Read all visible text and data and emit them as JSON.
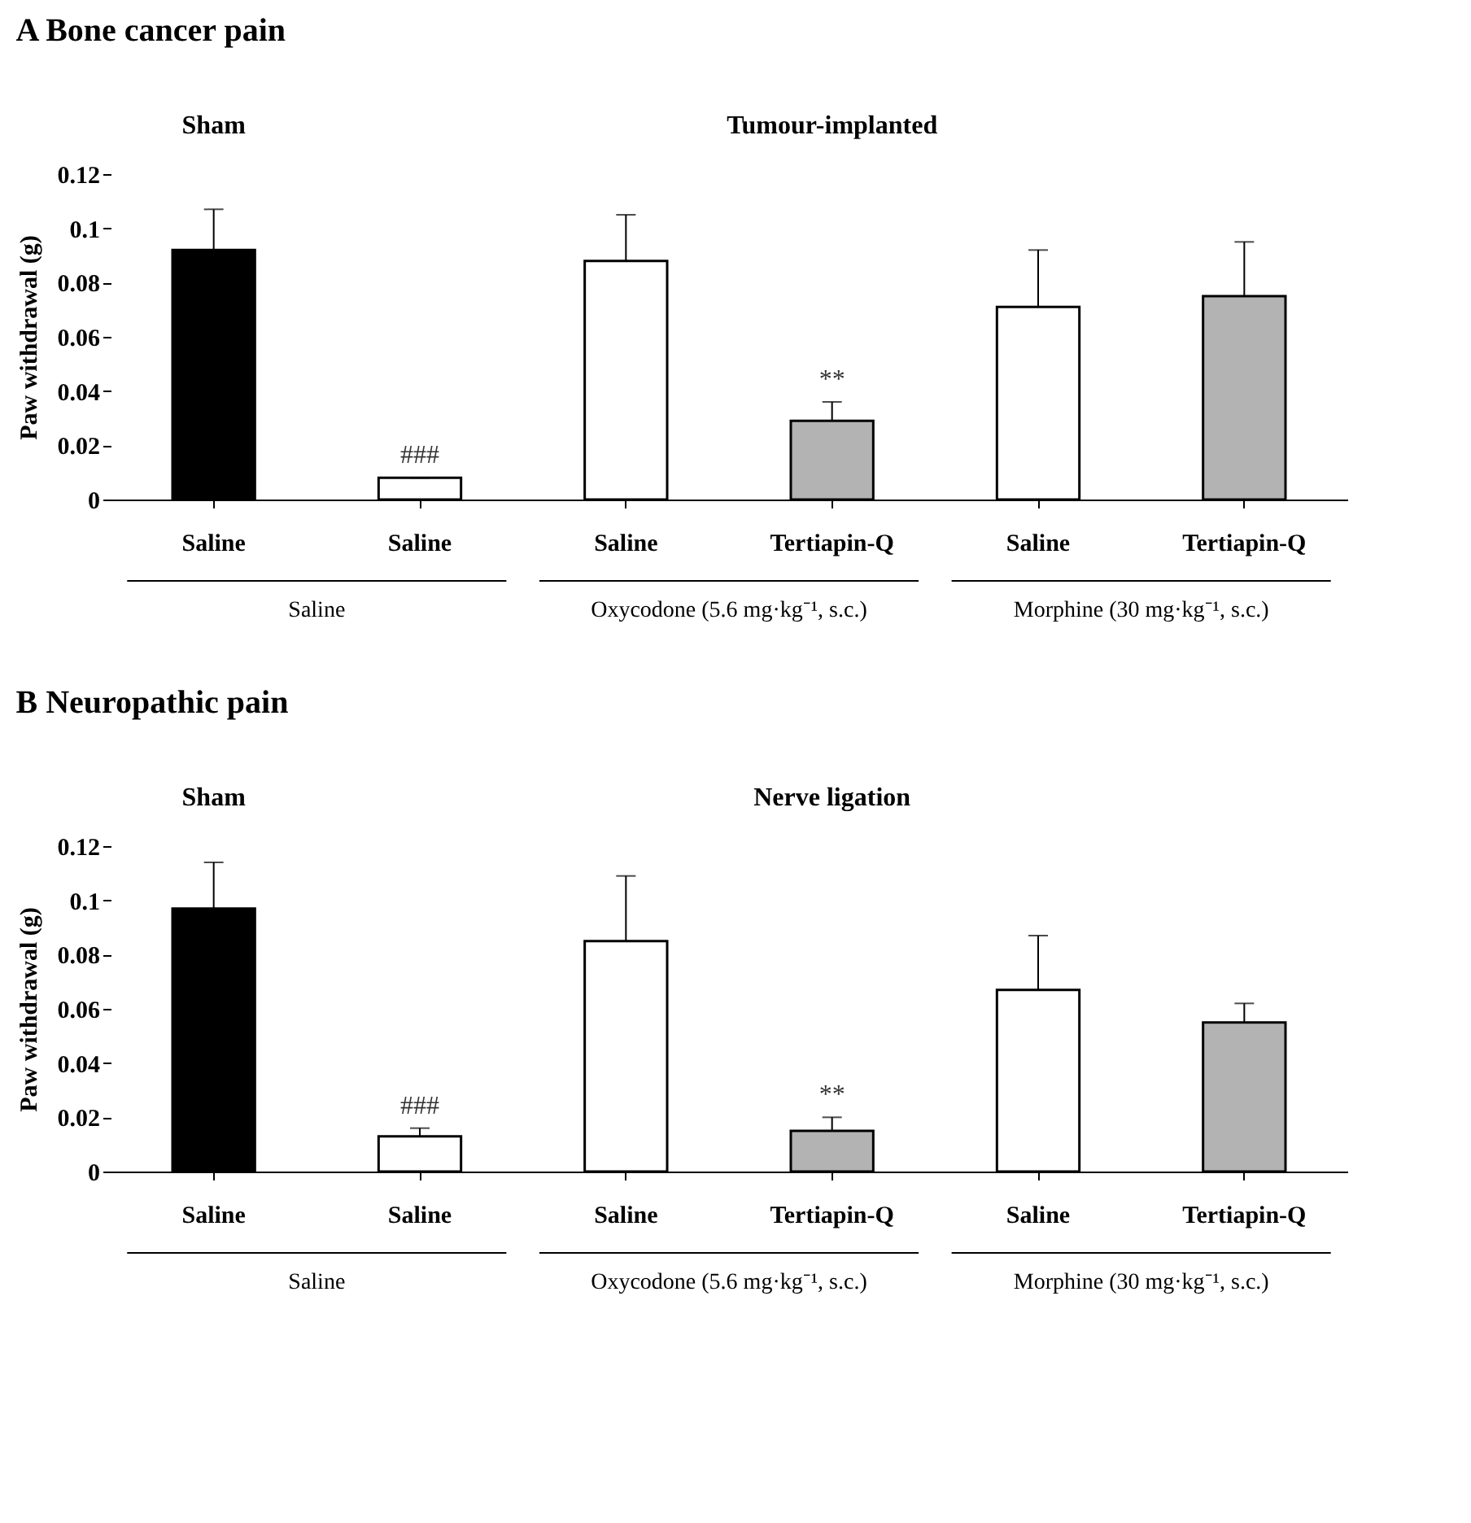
{
  "chart_data": [
    {
      "type": "bar",
      "title": "A Bone cancer pain",
      "ylabel": "Paw withdrawal (g)",
      "categories": [
        "Saline",
        "Saline",
        "Saline",
        "Tertiapin-Q",
        "Saline",
        "Tertiapin-Q"
      ],
      "values": [
        0.092,
        0.008,
        0.088,
        0.029,
        0.071,
        0.075
      ],
      "colors": [
        "#000000",
        "#ffffff",
        "#ffffff",
        "#b3b3b3",
        "#ffffff",
        "#b3b3b3"
      ],
      "errors": [
        [
          0.092,
          0.107
        ],
        [
          0.008,
          0.008
        ],
        [
          0.088,
          0.105
        ],
        [
          0.029,
          0.036
        ],
        [
          0.071,
          0.092
        ],
        [
          0.075,
          0.095
        ]
      ],
      "value_labels": [
        null,
        "###",
        null,
        "**",
        null,
        null
      ],
      "ylim": [
        0,
        0.12
      ],
      "yticks": [
        0,
        0.02,
        0.04,
        0.06,
        0.08,
        0.1,
        0.12
      ],
      "annotations": [
        "Sham",
        "Tumour-implanted",
        "Saline",
        "Oxycodone (5.6 mg·kg⁻¹, s.c.)",
        "Morphine (30 mg·kg⁻¹, s.c.)"
      ]
    },
    {
      "type": "bar",
      "title": "B Neuropathic pain",
      "ylabel": "Paw withdrawal (g)",
      "categories": [
        "Saline",
        "Saline",
        "Saline",
        "Tertiapin-Q",
        "Saline",
        "Tertiapin-Q"
      ],
      "values": [
        0.097,
        0.013,
        0.085,
        0.015,
        0.067,
        0.055
      ],
      "colors": [
        "#000000",
        "#ffffff",
        "#ffffff",
        "#b3b3b3",
        "#ffffff",
        "#b3b3b3"
      ],
      "errors": [
        [
          0.097,
          0.114
        ],
        [
          0.013,
          0.016
        ],
        [
          0.085,
          0.109
        ],
        [
          0.015,
          0.02
        ],
        [
          0.067,
          0.087
        ],
        [
          0.055,
          0.062
        ]
      ],
      "value_labels": [
        null,
        "###",
        null,
        "**",
        null,
        null
      ],
      "ylim": [
        0,
        0.12
      ],
      "yticks": [
        0,
        0.02,
        0.04,
        0.06,
        0.08,
        0.1,
        0.12
      ],
      "annotations": [
        "Sham",
        "Nerve ligation",
        "Saline",
        "Oxycodone (5.6 mg·kg⁻¹, s.c.)",
        "Morphine (30 mg·kg⁻¹, s.c.)"
      ]
    }
  ]
}
